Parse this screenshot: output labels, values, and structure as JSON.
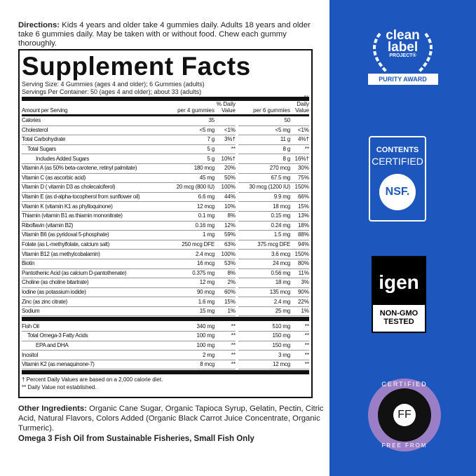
{
  "directions": {
    "label": "Directions:",
    "text": " Kids 4 years and older take 4 gummies daily. Adults 18 years and older take 6 gummies daily. May be taken with or without food. Chew each gummy thoroughly."
  },
  "facts": {
    "title": "Supplement Facts",
    "serving_size": "Serving Size: 4 Gummies (ages 4 and older); 6 Gummies (adults)",
    "servings_per_container": "Servings Per Container: 50 (ages 4 and older); about 33 (adults)",
    "headers": {
      "amount": "Amount per Serving",
      "per4": "per 4 gummies",
      "dv": "% Daily Value",
      "per6": "per 6 gummies"
    },
    "rows": [
      {
        "name": "Calories",
        "a4": "35",
        "d4": "",
        "a6": "50",
        "d6": "",
        "indent": 0
      },
      {
        "name": "Cholesterol",
        "a4": "<5 mg",
        "d4": "<1%",
        "a6": "<5 mg",
        "d6": "<1%",
        "indent": 0
      },
      {
        "name": "Total Carbohydrate",
        "a4": "7 g",
        "d4": "3%†",
        "a6": "11 g",
        "d6": "4%†",
        "indent": 0
      },
      {
        "name": "Total Sugars",
        "a4": "5 g",
        "d4": "**",
        "a6": "8 g",
        "d6": "**",
        "indent": 1
      },
      {
        "name": "Includes Added Sugars",
        "a4": "5 g",
        "d4": "10%†",
        "a6": "8 g",
        "d6": "16%†",
        "indent": 2
      },
      {
        "name": "Vitamin A (as 50% beta-carotene, retinyl palmitate)",
        "a4": "180 mcg",
        "d4": "20%",
        "a6": "270 mcg",
        "d6": "30%",
        "indent": 0
      },
      {
        "name": "Vitamin C (as ascorbic acid)",
        "a4": "45 mg",
        "d4": "50%",
        "a6": "67.5 mg",
        "d6": "75%",
        "indent": 0
      },
      {
        "name": "Vitamin D ( vitamin D3 as cholecalciferol)",
        "a4": "20 mcg (800 IU)",
        "d4": "100%",
        "a6": "30 mcg (1200 IU)",
        "d6": "150%",
        "indent": 0
      },
      {
        "name": "Vitamin E (as d-alpha-tocopherol from sunflower oil)",
        "a4": "6.6 mg",
        "d4": "44%",
        "a6": "9.9 mg",
        "d6": "66%",
        "indent": 0
      },
      {
        "name": "Vitamin K (vitamin K1 as phylloquinone)",
        "a4": "12 mcg",
        "d4": "10%",
        "a6": "18 mcg",
        "d6": "15%",
        "indent": 0
      },
      {
        "name": "Thiamin (vitamin B1 as thiamin mononitrate)",
        "a4": "0.1 mg",
        "d4": "8%",
        "a6": "0.15 mg",
        "d6": "13%",
        "indent": 0
      },
      {
        "name": "Riboflavin (vitamin B2)",
        "a4": "0.16 mg",
        "d4": "12%",
        "a6": "0.24 mg",
        "d6": "18%",
        "indent": 0
      },
      {
        "name": "Vitamin B6 (as pyridoxal 5-phosphate)",
        "a4": "1 mg",
        "d4": "59%",
        "a6": "1.5 mg",
        "d6": "88%",
        "indent": 0
      },
      {
        "name": "Folate (as L-methylfolate, calcium salt)",
        "a4": "250 mcg DFE",
        "d4": "63%",
        "a6": "375 mcg DFE",
        "d6": "94%",
        "indent": 0
      },
      {
        "name": "Vitamin B12 (as methylcobalamin)",
        "a4": "2.4 mcg",
        "d4": "100%",
        "a6": "3.6 mcg",
        "d6": "150%",
        "indent": 0
      },
      {
        "name": "Biotin",
        "a4": "16 mcg",
        "d4": "53%",
        "a6": "24 mcg",
        "d6": "80%",
        "indent": 0
      },
      {
        "name": "Pantothenic Acid (as calcium D-pantothenate)",
        "a4": "0.375 mg",
        "d4": "8%",
        "a6": "0.56 mg",
        "d6": "11%",
        "indent": 0
      },
      {
        "name": "Choline (as choline bitartrate)",
        "a4": "12 mg",
        "d4": "2%",
        "a6": "18 mg",
        "d6": "3%",
        "indent": 0
      },
      {
        "name": "Iodine (as potassium iodide)",
        "a4": "90 mcg",
        "d4": "60%",
        "a6": "135 mcg",
        "d6": "90%",
        "indent": 0
      },
      {
        "name": "Zinc (as zinc citrate)",
        "a4": "1.6 mg",
        "d4": "15%",
        "a6": "2.4 mg",
        "d6": "22%",
        "indent": 0
      },
      {
        "name": "Sodium",
        "a4": "15 mg",
        "d4": "1%",
        "a6": "25 mg",
        "d6": "1%",
        "indent": 0
      }
    ],
    "rows2": [
      {
        "name": "Fish Oil",
        "a4": "340 mg",
        "d4": "**",
        "a6": "510 mg",
        "d6": "**",
        "indent": 0
      },
      {
        "name": "Total Omega-3 Fatty Acids",
        "a4": "100 mg",
        "d4": "**",
        "a6": "150 mg",
        "d6": "**",
        "indent": 1
      },
      {
        "name": "EPA and DHA",
        "a4": "100 mg",
        "d4": "**",
        "a6": "150 mg",
        "d6": "**",
        "indent": 2
      },
      {
        "name": "Inositol",
        "a4": "2 mg",
        "d4": "**",
        "a6": "3 mg",
        "d6": "**",
        "indent": 0
      },
      {
        "name": "Vitamin K2 (as menaquinone-7)",
        "a4": "8 mcg",
        "d4": "**",
        "a6": "12 mcg",
        "d6": "**",
        "indent": 0
      }
    ],
    "footnote1": "† Percent Daily Values are based on a 2,000 calorie diet.",
    "footnote2": "** Daily Value not established."
  },
  "other_ingredients": {
    "label": "Other Ingredients:",
    "text": " Organic Cane Sugar, Organic Tapioca Syrup, Gelatin, Pectin, Citric Acid, Natural Flavors, Colors Added (Organic Black Carrot Juice Concentrate, Organic Turmeric)."
  },
  "omega_note": "Omega 3 Fish Oil from Sustainable Fisheries, Small Fish Only",
  "badges": {
    "clean_label": {
      "line1": "clean",
      "line2": "label",
      "line3": "PROJECT®",
      "award": "PURITY AWARD"
    },
    "nsf": {
      "line1": "CONTENTS",
      "line2": "CERTIFIED",
      "logo": "NSF."
    },
    "igen": {
      "logo": "igen",
      "line1": "NON-GMO",
      "line2": "TESTED"
    },
    "free_from": {
      "top": "CERTIFIED",
      "bottom": "FREE FROM",
      "center": "FF"
    }
  },
  "colors": {
    "panel_blue": "#1d56bd",
    "free_from_purple": "#9b7fc6"
  }
}
